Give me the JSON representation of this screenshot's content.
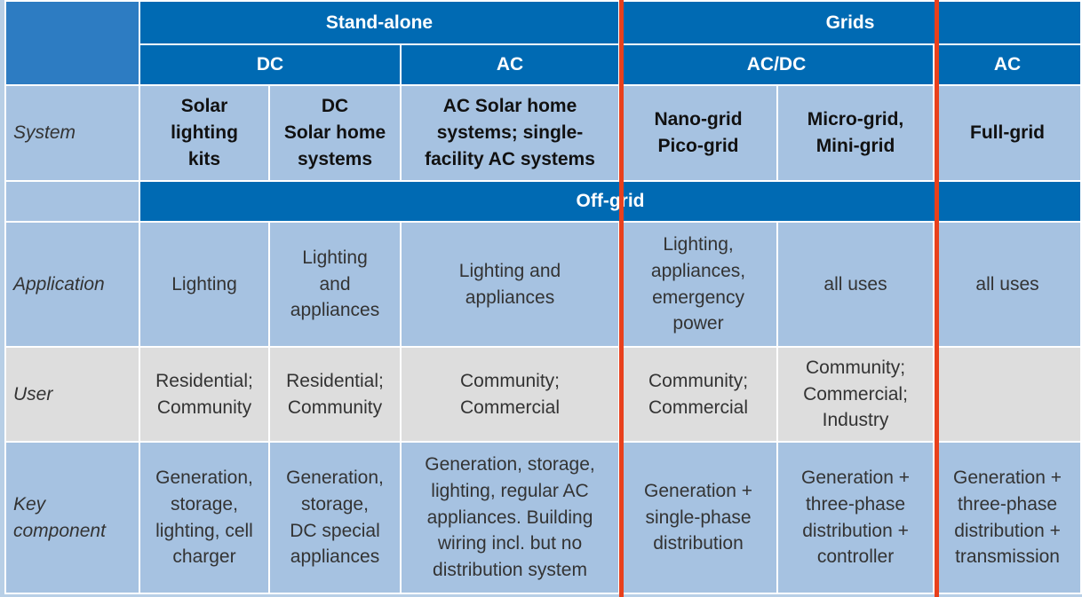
{
  "headers": {
    "stand_alone": "Stand-alone",
    "grids": "Grids",
    "dc": "DC",
    "ac": "AC",
    "ac_dc": "AC/DC",
    "ac_grid": "AC",
    "off_grid": "Off-grid"
  },
  "rows": {
    "system": {
      "label": "System",
      "cells": [
        "Solar\nlighting\nkits",
        "DC\nSolar home\nsystems",
        "AC Solar home\nsystems; single-\nfacility AC systems",
        "Nano-grid\nPico-grid",
        "Micro-grid,\nMini-grid",
        "Full-grid"
      ]
    },
    "application": {
      "label": "Application",
      "cells": [
        "Lighting",
        "Lighting\nand\nappliances",
        "Lighting and\nappliances",
        "Lighting,\nappliances,\nemergency\npower",
        "all uses",
        "all uses"
      ]
    },
    "user": {
      "label": "User",
      "cells": [
        "Residential;\nCommunity",
        "Residential;\nCommunity",
        "Community;\nCommercial",
        "Community;\nCommercial",
        "Community;\nCommercial;\nIndustry",
        ""
      ]
    },
    "key_component": {
      "label": "Key\ncomponent",
      "cells": [
        "Generation,\nstorage,\nlighting, cell\ncharger",
        "Generation,\nstorage,\nDC special\nappliances",
        "Generation, storage,\nlighting, regular AC\nappliances. Building\nwiring incl. but no\ndistribution system",
        "Generation +\nsingle-phase\ndistribution",
        "Generation +\nthree-phase\ndistribution +\ncontroller",
        "Generation +\nthree-phase\ndistribution +\ntransmission"
      ]
    }
  },
  "colors": {
    "header_blue": "#006ab3",
    "cell_blue": "#a6c2e1",
    "cell_grey": "#dddddd",
    "highlight_line": "#e8401c"
  }
}
